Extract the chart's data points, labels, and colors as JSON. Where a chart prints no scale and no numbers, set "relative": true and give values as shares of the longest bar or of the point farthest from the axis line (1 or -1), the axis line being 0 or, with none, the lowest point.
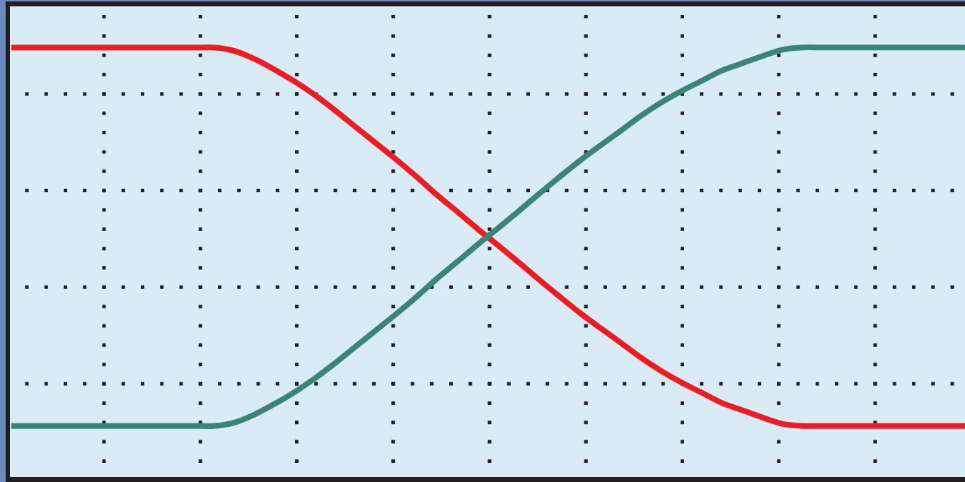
{
  "chart_data": {
    "type": "line",
    "relative": true,
    "grid": true,
    "marker": "none",
    "line_style": "solid",
    "categories": [
      null,
      null,
      null,
      null,
      null,
      null,
      null,
      null,
      null,
      null,
      null,
      null,
      null,
      null,
      null,
      null,
      null,
      null,
      null,
      null,
      null,
      null,
      null,
      null,
      null,
      null,
      null,
      null,
      null,
      null,
      null,
      null,
      null,
      null,
      null,
      null,
      null,
      null,
      null,
      null,
      null,
      null,
      null,
      null,
      null,
      null,
      null,
      null
    ],
    "series": [
      {
        "color": "#ed1c24",
        "values": [
          1,
          1,
          1,
          1,
          1,
          1,
          1,
          1,
          1,
          1,
          1,
          0.992,
          0.973,
          0.948,
          0.92,
          0.888,
          0.852,
          0.814,
          0.776,
          0.738,
          0.698,
          0.656,
          0.617,
          0.577,
          0.539,
          0.5,
          0.46,
          0.421,
          0.383,
          0.348,
          0.314,
          0.279,
          0.248,
          0.221,
          0.197,
          0.173,
          0.156,
          0.139,
          0.124,
          0.119,
          0.119,
          0.119,
          0.119,
          0.119,
          0.119,
          0.119,
          0.119,
          0.119
        ]
      },
      {
        "color": "#3b8576",
        "values": [
          0.119,
          0.119,
          0.119,
          0.119,
          0.119,
          0.119,
          0.119,
          0.119,
          0.119,
          0.119,
          0.119,
          0.127,
          0.146,
          0.171,
          0.199,
          0.231,
          0.267,
          0.305,
          0.343,
          0.381,
          0.421,
          0.463,
          0.502,
          0.542,
          0.58,
          0.619,
          0.659,
          0.698,
          0.736,
          0.771,
          0.805,
          0.84,
          0.871,
          0.898,
          0.922,
          0.946,
          0.963,
          0.98,
          0.995,
          1,
          1,
          1,
          1,
          1,
          1,
          1,
          1,
          1
        ]
      }
    ]
  }
}
